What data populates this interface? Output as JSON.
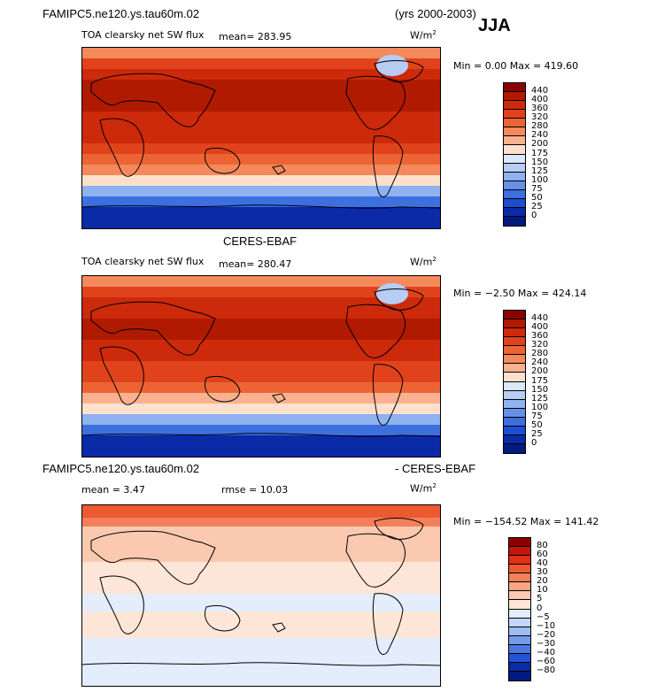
{
  "header": {
    "model_name": "FAMIPC5.ne120.ys.tau60m.02",
    "years": "(yrs 2000-2003)",
    "season": "JJA"
  },
  "panels": [
    {
      "id": "model",
      "title": "",
      "field_label": "TOA clearsky net SW flux",
      "stat_text": "mean= 283.95",
      "units": "W/m",
      "units_sup": "2",
      "minmax": "Min =    0.00 Max = 419.60"
    },
    {
      "id": "obs",
      "title": "CERES-EBAF",
      "field_label": "TOA clearsky net SW flux",
      "stat_text": "mean= 280.47",
      "units": "W/m",
      "units_sup": "2",
      "minmax": "Min =  −2.50 Max = 424.14"
    },
    {
      "id": "diff",
      "title_left": "FAMIPC5.ne120.ys.tau60m.02",
      "title_right": "- CERES-EBAF",
      "mean_text": "mean =     3.47",
      "rmse_text": "rmse =    10.03",
      "units": "W/m",
      "units_sup": "2",
      "minmax": "Min = −154.52 Max = 141.42"
    }
  ],
  "chart_data": [
    {
      "type": "heatmap",
      "title": "TOA clearsky net SW flux",
      "units": "W/m2",
      "mean": 283.95,
      "min": 0.0,
      "max": 419.6,
      "colorbar_levels": [
        "440",
        "400",
        "360",
        "320",
        "280",
        "240",
        "200",
        "175",
        "150",
        "125",
        "100",
        "75",
        "50",
        "25",
        "0"
      ],
      "colorbar_colors": [
        "#8b0000",
        "#b01a00",
        "#cc2a0a",
        "#e0431c",
        "#ec6434",
        "#f48a5c",
        "#f9b190",
        "#fde0cc",
        "#dce8fa",
        "#b7cdf5",
        "#8fb2f0",
        "#6691e8",
        "#3d6fdf",
        "#1b4ed1",
        "#0a2aa8",
        "#001a80"
      ],
      "latitude_profile_north_to_south": [
        260,
        330,
        370,
        400,
        410,
        405,
        395,
        380,
        360,
        330,
        290,
        240,
        180,
        120,
        60,
        20,
        5
      ],
      "grid": false
    },
    {
      "type": "heatmap",
      "title": "CERES-EBAF",
      "subtitle": "TOA clearsky net SW flux",
      "units": "W/m2",
      "mean": 280.47,
      "min": -2.5,
      "max": 424.14,
      "colorbar_levels": [
        "440",
        "400",
        "360",
        "320",
        "280",
        "240",
        "200",
        "175",
        "150",
        "125",
        "100",
        "75",
        "50",
        "25",
        "0"
      ],
      "colorbar_colors": [
        "#8b0000",
        "#b01a00",
        "#cc2a0a",
        "#e0431c",
        "#ec6434",
        "#f48a5c",
        "#f9b190",
        "#fde0cc",
        "#dce8fa",
        "#b7cdf5",
        "#8fb2f0",
        "#6691e8",
        "#3d6fdf",
        "#1b4ed1",
        "#0a2aa8",
        "#001a80"
      ],
      "latitude_profile_north_to_south": [
        255,
        325,
        368,
        398,
        410,
        404,
        394,
        378,
        356,
        326,
        285,
        236,
        176,
        116,
        56,
        18,
        3
      ],
      "grid": false
    },
    {
      "type": "heatmap",
      "title": "FAMIPC5.ne120.ys.tau60m.02 - CERES-EBAF",
      "units": "W/m2",
      "mean": 3.47,
      "rmse": 10.03,
      "min": -154.52,
      "max": 141.42,
      "colorbar_levels": [
        "80",
        "60",
        "40",
        "30",
        "20",
        "10",
        "5",
        "0",
        "−5",
        "−10",
        "−20",
        "−30",
        "−40",
        "−60",
        "−80"
      ],
      "colorbar_colors": [
        "#8b0000",
        "#c4150a",
        "#e03018",
        "#ec5a30",
        "#f3805a",
        "#f7a583",
        "#fbc9b0",
        "#fde6d8",
        "#e3edfb",
        "#c3d6f7",
        "#9ebcf2",
        "#739bea",
        "#4a77e0",
        "#2452d2",
        "#0a2aa8",
        "#001a80"
      ],
      "grid": false
    }
  ]
}
